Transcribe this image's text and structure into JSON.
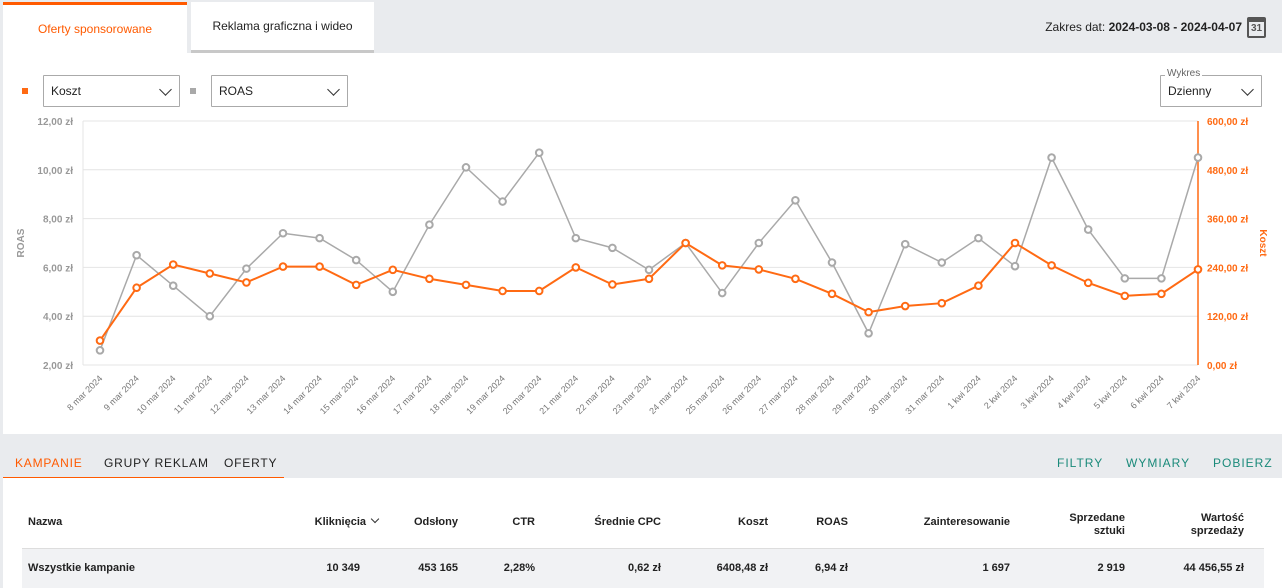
{
  "tabs": [
    {
      "label": "Oferty sponsorowane",
      "active": true
    },
    {
      "label": "Reklama graficzna i wideo",
      "active": false
    }
  ],
  "date_range": {
    "label": "Zakres dat: ",
    "value": "2024-03-08 - 2024-04-07",
    "calendar_day": "31"
  },
  "controls": {
    "metric1": "Koszt",
    "metric2": "ROAS",
    "chart_mode_label": "Wykres",
    "chart_mode": "Dzienny"
  },
  "colors": {
    "cost": "#ff6a13",
    "roas": "#a9a9a9",
    "accent": "#ff5a00",
    "action": "#1a8a7a"
  },
  "chart_data": {
    "type": "line",
    "left_axis_label": "ROAS",
    "right_axis_label": "Koszt",
    "left_ticks": [
      "2,00 zł",
      "4,00 zł",
      "6,00 zł",
      "8,00 zł",
      "10,00 zł",
      "12,00 zł"
    ],
    "right_ticks": [
      "0,00 zł",
      "120,00 zł",
      "240,00 zł",
      "360,00 zł",
      "480,00 zł",
      "600,00 zł"
    ],
    "left_range": [
      2,
      12
    ],
    "right_range": [
      0,
      600
    ],
    "categories": [
      "8 mar 2024",
      "9 mar 2024",
      "10 mar 2024",
      "11 mar 2024",
      "12 mar 2024",
      "13 mar 2024",
      "14 mar 2024",
      "15 mar 2024",
      "16 mar 2024",
      "17 mar 2024",
      "18 mar 2024",
      "19 mar 2024",
      "20 mar 2024",
      "21 mar 2024",
      "22 mar 2024",
      "23 mar 2024",
      "24 mar 2024",
      "25 mar 2024",
      "26 mar 2024",
      "27 mar 2024",
      "28 mar 2024",
      "29 mar 2024",
      "30 mar 2024",
      "31 mar 2024",
      "1 kwi 2024",
      "2 kwi 2024",
      "3 kwi 2024",
      "4 kwi 2024",
      "5 kwi 2024",
      "6 kwi 2024",
      "7 kwi 2024"
    ],
    "series": [
      {
        "name": "ROAS",
        "axis": "left",
        "values": [
          2.6,
          6.5,
          5.25,
          4.0,
          5.95,
          7.4,
          7.2,
          6.3,
          5.0,
          7.75,
          10.1,
          8.7,
          10.7,
          7.2,
          6.8,
          5.9,
          7.0,
          4.95,
          7.0,
          8.75,
          6.2,
          3.3,
          6.95,
          6.2,
          7.2,
          6.05,
          10.5,
          7.55,
          5.55,
          5.55,
          10.5
        ]
      },
      {
        "name": "Koszt",
        "axis": "right",
        "values": [
          60,
          190,
          247,
          225,
          203,
          242,
          242,
          197,
          234,
          212,
          197,
          182,
          182,
          240,
          198,
          212,
          300,
          245,
          235,
          212,
          175,
          130,
          145,
          152,
          195,
          300,
          245,
          202,
          170,
          175,
          235
        ]
      }
    ]
  },
  "subtabs": [
    "KAMPANIE",
    "GRUPY REKLAM",
    "OFERTY"
  ],
  "actions": [
    "FILTRY",
    "WYMIARY",
    "POBIERZ"
  ],
  "table": {
    "headers": {
      "name": "Nazwa",
      "clicks": "Kliknięcia",
      "views": "Odsłony",
      "ctr": "CTR",
      "cpc": "Średnie CPC",
      "cost": "Koszt",
      "roas": "ROAS",
      "interest": "Zainteresowanie",
      "sold_1": "Sprzedane",
      "sold_2": "sztuki",
      "value_1": "Wartość",
      "value_2": "sprzedaży"
    },
    "total": {
      "name": "Wszystkie kampanie",
      "clicks": "10 349",
      "views": "453 165",
      "ctr": "2,28%",
      "cpc": "0,62 zł",
      "cost": "6408,48 zł",
      "roas": "6,94 zł",
      "interest": "1 697",
      "sold": "2 919",
      "value": "44 456,55 zł"
    }
  }
}
